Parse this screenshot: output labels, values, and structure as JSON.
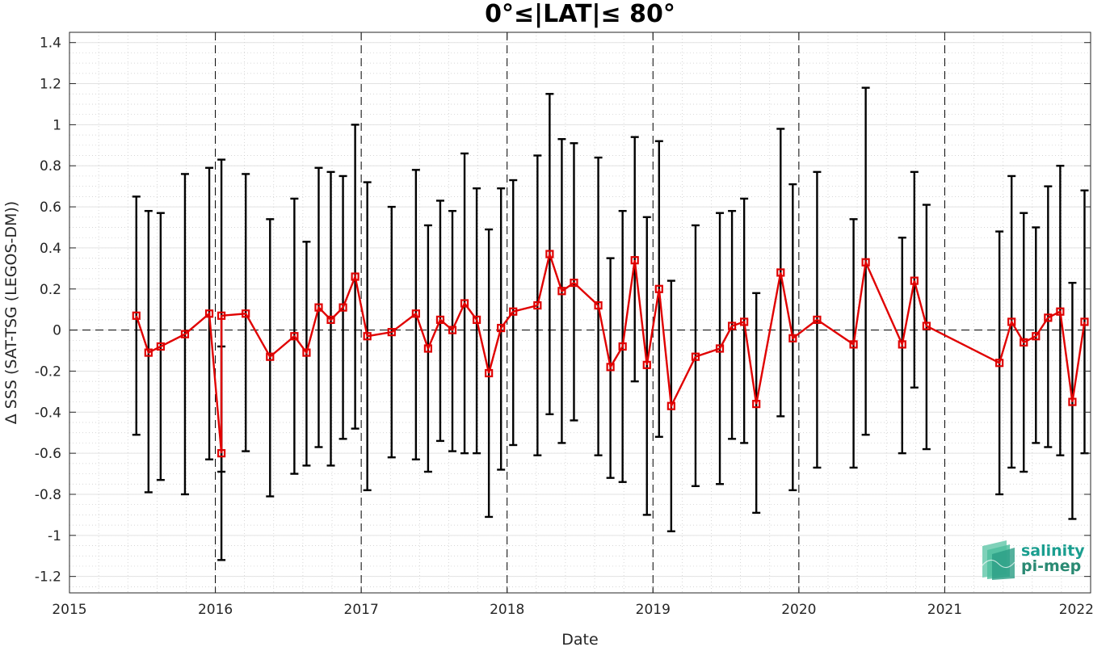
{
  "chart_data": {
    "type": "line",
    "title": "0°≤|LAT|≤ 80°",
    "xlabel": "Date",
    "ylabel": "Δ SSS (SAT-TSG (LEGOS-DM))",
    "xlim": [
      2015,
      2022
    ],
    "ylim": [
      -1.28,
      1.45
    ],
    "x_ticks": [
      "2015",
      "2016",
      "2017",
      "2018",
      "2019",
      "2020",
      "2021",
      "2022"
    ],
    "y_ticks": [
      "-1.2",
      "-1",
      "-0.8",
      "-0.6",
      "-0.4",
      "-0.2",
      "0",
      "0.2",
      "0.4",
      "0.6",
      "0.8",
      "1",
      "1.2",
      "1.4"
    ],
    "grid": true,
    "year_separators": [
      "2016",
      "2017",
      "2018",
      "2019",
      "2020",
      "2021"
    ],
    "zero_line": 0,
    "series": [
      {
        "color": "#e00000",
        "marker": "square",
        "points": [
          {
            "x": "2015-06",
            "y": 0.07,
            "low": -0.51,
            "high": 0.65
          },
          {
            "x": "2015-07",
            "y": -0.11,
            "low": -0.79,
            "high": 0.58
          },
          {
            "x": "2015-08",
            "y": -0.08,
            "low": -0.73,
            "high": 0.57
          },
          {
            "x": "2015-10",
            "y": -0.02,
            "low": -0.8,
            "high": 0.76
          },
          {
            "x": "2015-12",
            "y": 0.08,
            "low": -0.63,
            "high": 0.79
          },
          {
            "x": "2016-01",
            "y": -0.6,
            "low": -1.12,
            "high": -0.08
          },
          {
            "x": "2016-01",
            "y": 0.07,
            "low": -0.69,
            "high": 0.83
          },
          {
            "x": "2016-03",
            "y": 0.08,
            "low": -0.59,
            "high": 0.76
          },
          {
            "x": "2016-05",
            "y": -0.13,
            "low": -0.81,
            "high": 0.54
          },
          {
            "x": "2016-07",
            "y": -0.03,
            "low": -0.7,
            "high": 0.64
          },
          {
            "x": "2016-08",
            "y": -0.11,
            "low": -0.66,
            "high": 0.43
          },
          {
            "x": "2016-09",
            "y": 0.11,
            "low": -0.57,
            "high": 0.79
          },
          {
            "x": "2016-10",
            "y": 0.05,
            "low": -0.66,
            "high": 0.77
          },
          {
            "x": "2016-11",
            "y": 0.11,
            "low": -0.53,
            "high": 0.75
          },
          {
            "x": "2016-12",
            "y": 0.26,
            "low": -0.48,
            "high": 1.0
          },
          {
            "x": "2017-01",
            "y": -0.03,
            "low": -0.78,
            "high": 0.72
          },
          {
            "x": "2017-03",
            "y": -0.01,
            "low": -0.62,
            "high": 0.6
          },
          {
            "x": "2017-05",
            "y": 0.08,
            "low": -0.63,
            "high": 0.78
          },
          {
            "x": "2017-06",
            "y": -0.09,
            "low": -0.69,
            "high": 0.51
          },
          {
            "x": "2017-07",
            "y": 0.05,
            "low": -0.54,
            "high": 0.63
          },
          {
            "x": "2017-08",
            "y": 0.0,
            "low": -0.59,
            "high": 0.58
          },
          {
            "x": "2017-09",
            "y": 0.13,
            "low": -0.6,
            "high": 0.86
          },
          {
            "x": "2017-10",
            "y": 0.05,
            "low": -0.6,
            "high": 0.69
          },
          {
            "x": "2017-11",
            "y": -0.21,
            "low": -0.91,
            "high": 0.49
          },
          {
            "x": "2017-12",
            "y": 0.01,
            "low": -0.68,
            "high": 0.69
          },
          {
            "x": "2018-01",
            "y": 0.09,
            "low": -0.56,
            "high": 0.73
          },
          {
            "x": "2018-03",
            "y": 0.12,
            "low": -0.61,
            "high": 0.85
          },
          {
            "x": "2018-04",
            "y": 0.37,
            "low": -0.41,
            "high": 1.15
          },
          {
            "x": "2018-05",
            "y": 0.19,
            "low": -0.55,
            "high": 0.93
          },
          {
            "x": "2018-06",
            "y": 0.23,
            "low": -0.44,
            "high": 0.91
          },
          {
            "x": "2018-08",
            "y": 0.12,
            "low": -0.61,
            "high": 0.84
          },
          {
            "x": "2018-09",
            "y": -0.18,
            "low": -0.72,
            "high": 0.35
          },
          {
            "x": "2018-10",
            "y": -0.08,
            "low": -0.74,
            "high": 0.58
          },
          {
            "x": "2018-11",
            "y": 0.34,
            "low": -0.25,
            "high": 0.94
          },
          {
            "x": "2018-12",
            "y": -0.17,
            "low": -0.9,
            "high": 0.55
          },
          {
            "x": "2019-01",
            "y": 0.2,
            "low": -0.52,
            "high": 0.92
          },
          {
            "x": "2019-02",
            "y": -0.37,
            "low": -0.98,
            "high": 0.24
          },
          {
            "x": "2019-04",
            "y": -0.13,
            "low": -0.76,
            "high": 0.51
          },
          {
            "x": "2019-06",
            "y": -0.09,
            "low": -0.75,
            "high": 0.57
          },
          {
            "x": "2019-07",
            "y": 0.02,
            "low": -0.53,
            "high": 0.58
          },
          {
            "x": "2019-08",
            "y": 0.04,
            "low": -0.55,
            "high": 0.64
          },
          {
            "x": "2019-09",
            "y": -0.36,
            "low": -0.89,
            "high": 0.18
          },
          {
            "x": "2019-11",
            "y": 0.28,
            "low": -0.42,
            "high": 0.98
          },
          {
            "x": "2019-12",
            "y": -0.04,
            "low": -0.78,
            "high": 0.71
          },
          {
            "x": "2020-02",
            "y": 0.05,
            "low": -0.67,
            "high": 0.77
          },
          {
            "x": "2020-05",
            "y": -0.07,
            "low": -0.67,
            "high": 0.54
          },
          {
            "x": "2020-06",
            "y": 0.33,
            "low": -0.51,
            "high": 1.18
          },
          {
            "x": "2020-09",
            "y": -0.07,
            "low": -0.6,
            "high": 0.45
          },
          {
            "x": "2020-10",
            "y": 0.24,
            "low": -0.28,
            "high": 0.77
          },
          {
            "x": "2020-11",
            "y": 0.02,
            "low": -0.58,
            "high": 0.61
          },
          {
            "x": "2021-05",
            "y": -0.16,
            "low": -0.8,
            "high": 0.48
          },
          {
            "x": "2021-06",
            "y": 0.04,
            "low": -0.67,
            "high": 0.75
          },
          {
            "x": "2021-07",
            "y": -0.06,
            "low": -0.69,
            "high": 0.57
          },
          {
            "x": "2021-08",
            "y": -0.03,
            "low": -0.55,
            "high": 0.5
          },
          {
            "x": "2021-09",
            "y": 0.06,
            "low": -0.57,
            "high": 0.7
          },
          {
            "x": "2021-10",
            "y": 0.09,
            "low": -0.61,
            "high": 0.8
          },
          {
            "x": "2021-11",
            "y": -0.35,
            "low": -0.92,
            "high": 0.23
          },
          {
            "x": "2021-12",
            "y": 0.04,
            "low": -0.6,
            "high": 0.68
          }
        ]
      }
    ],
    "errorbar_color": "#000000"
  },
  "logo": {
    "line1": "salinity",
    "line2": "pi-mep",
    "color_line1": "#1a9e8f",
    "color_line2": "#2a8a73"
  }
}
